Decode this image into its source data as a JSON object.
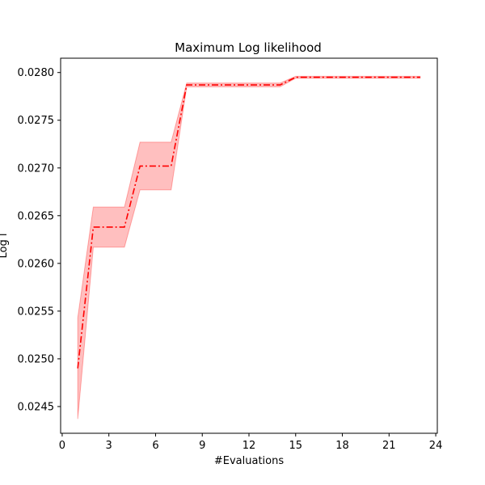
{
  "chart_data": {
    "type": "line",
    "title": "Maximum Log likelihood",
    "xlabel": "#Evaluations",
    "ylabel": "Log l",
    "xlim": [
      -0.1,
      24.1
    ],
    "ylim": [
      0.02422,
      0.02815
    ],
    "x_ticks": [
      0,
      3,
      6,
      9,
      12,
      15,
      18,
      21,
      24
    ],
    "y_ticks": [
      0.0245,
      0.025,
      0.0255,
      0.026,
      0.0265,
      0.027,
      0.0275,
      0.028
    ],
    "y_tick_labels": [
      "0.0245",
      "0.0250",
      "0.0255",
      "0.0260",
      "0.0265",
      "0.0270",
      "0.0275",
      "0.0280"
    ],
    "grid": false,
    "colors": {
      "line": "#ff0000",
      "band": "#ff0000"
    },
    "series": [
      {
        "x": [
          1,
          2,
          3,
          4,
          5,
          6,
          7,
          8,
          9,
          10,
          11,
          12,
          13,
          14,
          15,
          16,
          17,
          18,
          19,
          20,
          21,
          22,
          23
        ],
        "mean": [
          0.0249,
          0.02638,
          0.02638,
          0.02638,
          0.02702,
          0.02702,
          0.02702,
          0.02787,
          0.02787,
          0.02787,
          0.02787,
          0.02787,
          0.02787,
          0.02787,
          0.02795,
          0.02795,
          0.02795,
          0.02795,
          0.02795,
          0.02795,
          0.02795,
          0.02795,
          0.02795
        ],
        "lower": [
          0.02437,
          0.02617,
          0.02617,
          0.02617,
          0.02677,
          0.02677,
          0.02677,
          0.02785,
          0.02785,
          0.02785,
          0.02785,
          0.02785,
          0.02785,
          0.02785,
          0.02794,
          0.02794,
          0.02794,
          0.02794,
          0.02794,
          0.02794,
          0.02794,
          0.02794,
          0.02794
        ],
        "upper": [
          0.02543,
          0.02659,
          0.02659,
          0.02659,
          0.02727,
          0.02727,
          0.02727,
          0.02789,
          0.02789,
          0.02789,
          0.02789,
          0.02789,
          0.02789,
          0.02789,
          0.02796,
          0.02796,
          0.02796,
          0.02796,
          0.02796,
          0.02796,
          0.02796,
          0.02796,
          0.02796
        ]
      }
    ]
  }
}
